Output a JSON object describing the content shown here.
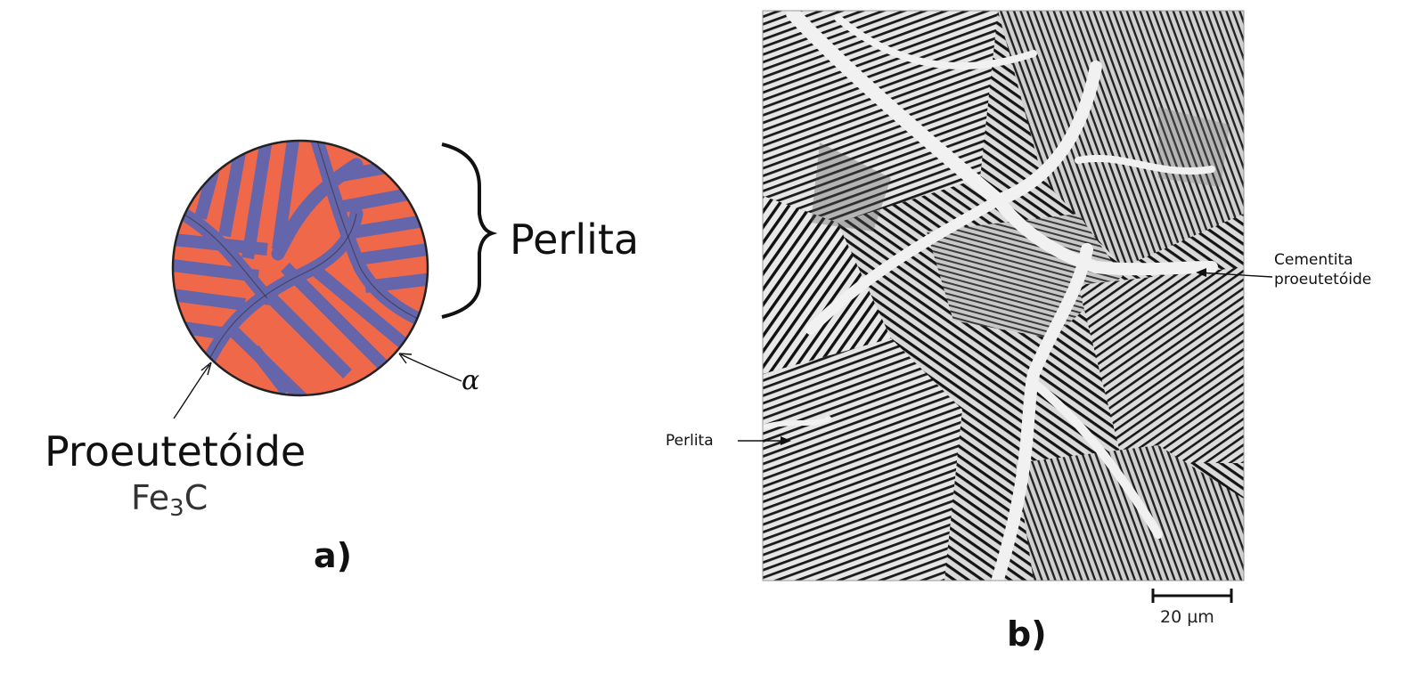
{
  "panel_a": {
    "perlite_label": "Perlita",
    "proeutectoid_label": "Proeutetóide",
    "fe_label": "Fe",
    "fe_subscript": "3",
    "c_label": "C",
    "alpha_label": "α",
    "panel_tag": "a)",
    "colors": {
      "alpha_ferrite": "#f0684a",
      "cementite": "#6465ab",
      "outline": "#222222"
    }
  },
  "panel_b": {
    "cementite_label_line1": "Cementita",
    "cementite_label_line2": "proeutetóide",
    "perlite_label": "Perlita",
    "scale_bar_label": "20 µm",
    "panel_tag": "b)"
  }
}
